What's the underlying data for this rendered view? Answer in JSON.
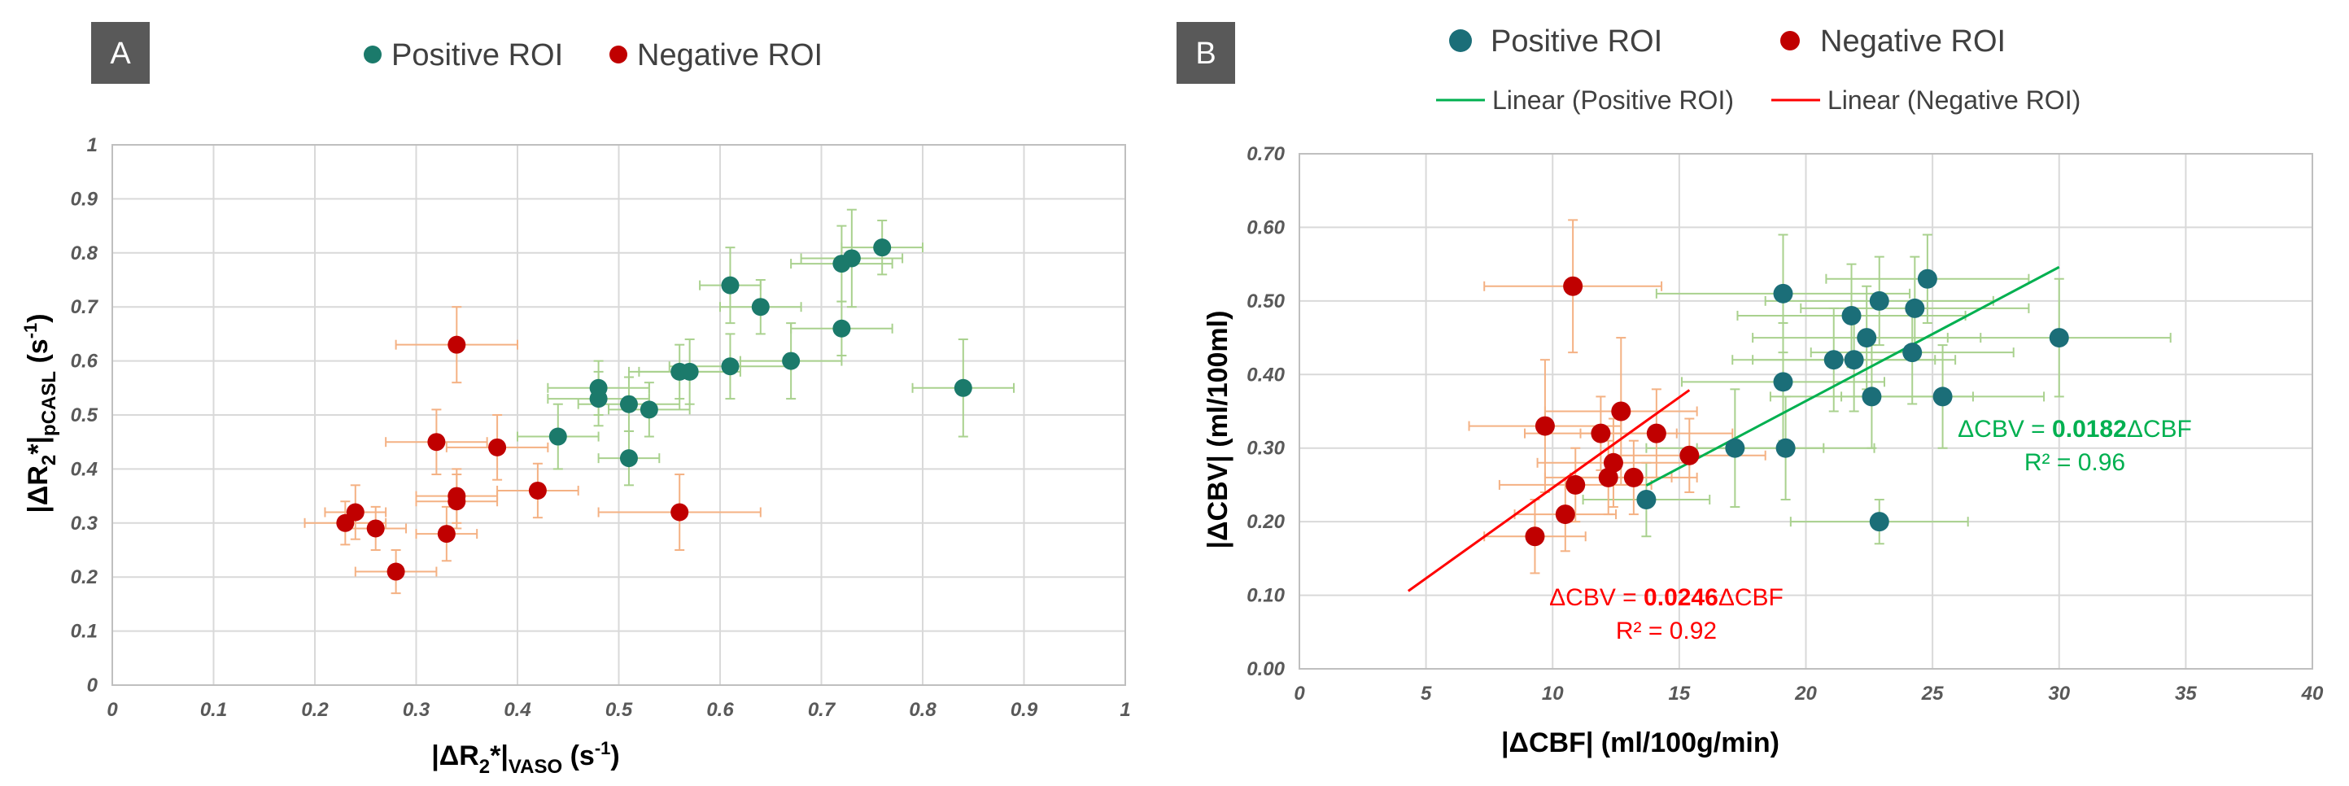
{
  "chart_data": [
    {
      "panel": "A",
      "type": "scatter",
      "title": "",
      "xlabel": {
        "main": "|ΔR",
        "sub1": "2",
        "star": "*|",
        "sub2": "VASO",
        "unit": " (s",
        "sup": "-1",
        "close": ")"
      },
      "ylabel": {
        "main": "|ΔR",
        "sub1": "2",
        "star": "*|",
        "sub2": "pCASL",
        "unit": " (s",
        "sup": "-1",
        "close": ")"
      },
      "xlim": [
        0,
        1
      ],
      "ylim": [
        0,
        1
      ],
      "x_ticks": [
        "0",
        "0.1",
        "0.2",
        "0.3",
        "0.4",
        "0.5",
        "0.6",
        "0.7",
        "0.8",
        "0.9",
        "1"
      ],
      "y_ticks": [
        "0",
        "0.1",
        "0.2",
        "0.3",
        "0.4",
        "0.5",
        "0.6",
        "0.7",
        "0.8",
        "0.9",
        "1"
      ],
      "legend": [
        "Positive ROI",
        "Negative ROI"
      ],
      "colors": {
        "positive": "#1b7a6b",
        "negative": "#c00000",
        "positive_err": "#a9d18e",
        "negative_err": "#f4b183",
        "grid": "#d9d9d9"
      },
      "series": [
        {
          "name": "Positive ROI",
          "points": [
            {
              "x": 0.44,
              "y": 0.46,
              "xe": 0.04,
              "ye": 0.06
            },
            {
              "x": 0.48,
              "y": 0.55,
              "xe": 0.05,
              "ye": 0.05
            },
            {
              "x": 0.48,
              "y": 0.53,
              "xe": 0.05,
              "ye": 0.05
            },
            {
              "x": 0.51,
              "y": 0.52,
              "xe": 0.05,
              "ye": 0.05
            },
            {
              "x": 0.51,
              "y": 0.42,
              "xe": 0.03,
              "ye": 0.05
            },
            {
              "x": 0.53,
              "y": 0.51,
              "xe": 0.04,
              "ye": 0.05
            },
            {
              "x": 0.56,
              "y": 0.58,
              "xe": 0.05,
              "ye": 0.05
            },
            {
              "x": 0.57,
              "y": 0.58,
              "xe": 0.05,
              "ye": 0.06
            },
            {
              "x": 0.61,
              "y": 0.59,
              "xe": 0.06,
              "ye": 0.06
            },
            {
              "x": 0.61,
              "y": 0.74,
              "xe": 0.03,
              "ye": 0.07
            },
            {
              "x": 0.64,
              "y": 0.7,
              "xe": 0.04,
              "ye": 0.05
            },
            {
              "x": 0.67,
              "y": 0.6,
              "xe": 0.05,
              "ye": 0.07
            },
            {
              "x": 0.72,
              "y": 0.78,
              "xe": 0.05,
              "ye": 0.07
            },
            {
              "x": 0.73,
              "y": 0.79,
              "xe": 0.05,
              "ye": 0.09
            },
            {
              "x": 0.72,
              "y": 0.66,
              "xe": 0.05,
              "ye": 0.05
            },
            {
              "x": 0.76,
              "y": 0.81,
              "xe": 0.04,
              "ye": 0.05
            },
            {
              "x": 0.84,
              "y": 0.55,
              "xe": 0.05,
              "ye": 0.09
            }
          ]
        },
        {
          "name": "Negative ROI",
          "points": [
            {
              "x": 0.23,
              "y": 0.3,
              "xe": 0.04,
              "ye": 0.04
            },
            {
              "x": 0.24,
              "y": 0.32,
              "xe": 0.03,
              "ye": 0.05
            },
            {
              "x": 0.26,
              "y": 0.29,
              "xe": 0.03,
              "ye": 0.04
            },
            {
              "x": 0.28,
              "y": 0.21,
              "xe": 0.04,
              "ye": 0.04
            },
            {
              "x": 0.32,
              "y": 0.45,
              "xe": 0.05,
              "ye": 0.06
            },
            {
              "x": 0.33,
              "y": 0.28,
              "xe": 0.03,
              "ye": 0.05
            },
            {
              "x": 0.34,
              "y": 0.35,
              "xe": 0.04,
              "ye": 0.05
            },
            {
              "x": 0.34,
              "y": 0.34,
              "xe": 0.04,
              "ye": 0.05
            },
            {
              "x": 0.34,
              "y": 0.63,
              "xe": 0.06,
              "ye": 0.07
            },
            {
              "x": 0.38,
              "y": 0.44,
              "xe": 0.05,
              "ye": 0.06
            },
            {
              "x": 0.42,
              "y": 0.36,
              "xe": 0.04,
              "ye": 0.05
            },
            {
              "x": 0.56,
              "y": 0.32,
              "xe": 0.08,
              "ye": 0.07
            }
          ]
        }
      ]
    },
    {
      "panel": "B",
      "type": "scatter",
      "title": "",
      "xlabel": "|ΔCBF| (ml/100g/min)",
      "ylabel": "|ΔCBV| (ml/100ml)",
      "xlim": [
        0,
        40
      ],
      "ylim": [
        0,
        0.7
      ],
      "x_ticks": [
        "0",
        "5",
        "10",
        "15",
        "20",
        "25",
        "30",
        "35",
        "40"
      ],
      "y_ticks": [
        "0.00",
        "0.10",
        "0.20",
        "0.30",
        "0.40",
        "0.50",
        "0.60",
        "0.70"
      ],
      "legend": [
        "Positive ROI",
        "Negative ROI",
        "Linear (Positive ROI)",
        "Linear (Negative ROI)"
      ],
      "colors": {
        "positive": "#1b6e78",
        "negative": "#c00000",
        "positive_err": "#a9d18e",
        "negative_err": "#f4b183",
        "pos_line": "#00b050",
        "neg_line": "#ff0000",
        "grid": "#d9d9d9"
      },
      "series": [
        {
          "name": "Positive ROI",
          "points": [
            {
              "x": 13.7,
              "y": 0.23,
              "xe": 2.5,
              "ye": 0.05
            },
            {
              "x": 17.2,
              "y": 0.3,
              "xe": 3.5,
              "ye": 0.08
            },
            {
              "x": 19.2,
              "y": 0.3,
              "xe": 3.5,
              "ye": 0.07
            },
            {
              "x": 19.1,
              "y": 0.39,
              "xe": 4.0,
              "ye": 0.08
            },
            {
              "x": 19.1,
              "y": 0.51,
              "xe": 5.0,
              "ye": 0.08
            },
            {
              "x": 21.1,
              "y": 0.42,
              "xe": 4.0,
              "ye": 0.07
            },
            {
              "x": 21.8,
              "y": 0.48,
              "xe": 4.5,
              "ye": 0.07
            },
            {
              "x": 21.9,
              "y": 0.42,
              "xe": 4.0,
              "ye": 0.07
            },
            {
              "x": 22.4,
              "y": 0.45,
              "xe": 4.5,
              "ye": 0.07
            },
            {
              "x": 22.6,
              "y": 0.37,
              "xe": 4.0,
              "ye": 0.07
            },
            {
              "x": 22.9,
              "y": 0.5,
              "xe": 4.5,
              "ye": 0.06
            },
            {
              "x": 24.2,
              "y": 0.43,
              "xe": 4.0,
              "ye": 0.07
            },
            {
              "x": 24.3,
              "y": 0.49,
              "xe": 4.5,
              "ye": 0.07
            },
            {
              "x": 24.8,
              "y": 0.53,
              "xe": 4.0,
              "ye": 0.06
            },
            {
              "x": 25.4,
              "y": 0.37,
              "xe": 4.0,
              "ye": 0.07
            },
            {
              "x": 30.0,
              "y": 0.45,
              "xe": 4.4,
              "ye": 0.08
            },
            {
              "x": 22.9,
              "y": 0.2,
              "xe": 3.5,
              "ye": 0.03
            }
          ],
          "fit": {
            "x0": 13.7,
            "x1": 30.0,
            "slope": 0.0182
          }
        },
        {
          "name": "Negative ROI",
          "points": [
            {
              "x": 9.3,
              "y": 0.18,
              "xe": 2.0,
              "ye": 0.05
            },
            {
              "x": 9.7,
              "y": 0.33,
              "xe": 3.0,
              "ye": 0.09
            },
            {
              "x": 10.5,
              "y": 0.21,
              "xe": 2.0,
              "ye": 0.05
            },
            {
              "x": 10.9,
              "y": 0.25,
              "xe": 3.0,
              "ye": 0.05
            },
            {
              "x": 10.8,
              "y": 0.52,
              "xe": 3.5,
              "ye": 0.09
            },
            {
              "x": 11.9,
              "y": 0.32,
              "xe": 3.0,
              "ye": 0.05
            },
            {
              "x": 12.2,
              "y": 0.26,
              "xe": 2.5,
              "ye": 0.05
            },
            {
              "x": 12.4,
              "y": 0.28,
              "xe": 3.0,
              "ye": 0.06
            },
            {
              "x": 12.7,
              "y": 0.35,
              "xe": 3.0,
              "ye": 0.1
            },
            {
              "x": 13.2,
              "y": 0.26,
              "xe": 2.5,
              "ye": 0.05
            },
            {
              "x": 14.1,
              "y": 0.32,
              "xe": 3.0,
              "ye": 0.06
            },
            {
              "x": 15.4,
              "y": 0.29,
              "xe": 3.0,
              "ye": 0.05
            }
          ],
          "fit": {
            "x0": 4.3,
            "x1": 15.4,
            "slope": 0.0246
          }
        }
      ],
      "annotations": {
        "positive_eq": {
          "prefix": "ΔCBV = ",
          "coef": "0.0182",
          "suffix": "ΔCBF",
          "r2": "R² = 0.96"
        },
        "negative_eq": {
          "prefix": "ΔCBV = ",
          "coef": "0.0246",
          "suffix": "ΔCBF",
          "r2": "R² = 0.92"
        }
      }
    }
  ]
}
